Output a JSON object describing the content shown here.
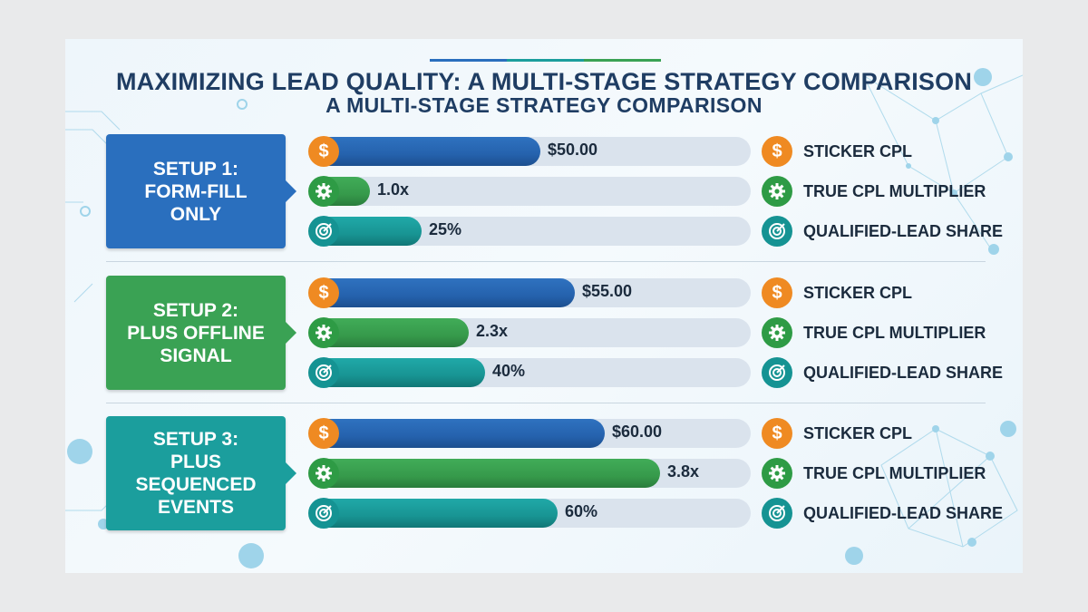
{
  "title": "MAXIMIZING LEAD QUALITY: A MULTI-STAGE STRATEGY COMPARISON",
  "subtitle": "A MULTI-STAGE STRATEGY COMPARISON",
  "colors": {
    "blue": "#2562ad",
    "green": "#369a4b",
    "teal": "#189493",
    "orange": "#ef8a22",
    "title": "#1f3d63",
    "track": "#dae3ed"
  },
  "metrics": [
    {
      "key": "sticker_cpl",
      "label": "STICKER CPL",
      "icon": "dollar-icon",
      "bar_color": "#2562ad",
      "icon_color": "#ef8a22"
    },
    {
      "key": "true_cpl_multiplier",
      "label": "TRUE CPL MULTIPLIER",
      "icon": "gear-icon",
      "bar_color": "#369a4b",
      "icon_color": "#2e9b45"
    },
    {
      "key": "qualified_lead_share",
      "label": "QUALIFIED-LEAD SHARE",
      "icon": "target-icon",
      "bar_color": "#189493",
      "icon_color": "#159393"
    }
  ],
  "chart_data": {
    "type": "bar",
    "orientation": "horizontal",
    "title": "MAXIMIZING LEAD QUALITY: A MULTI-STAGE STRATEGY COMPARISON",
    "subtitle": "A MULTI-STAGE STRATEGY COMPARISON",
    "legend_position": "right",
    "groups": [
      {
        "name": "SETUP 1:\nFORM-FILL\nONLY",
        "color": "#2a6fbe",
        "values": [
          {
            "metric": "STICKER CPL",
            "value": 50,
            "label": "$50.00",
            "fill": 0.52
          },
          {
            "metric": "TRUE CPL MULTIPLIER",
            "value": 1.0,
            "label": "1.0x",
            "fill": 0.12
          },
          {
            "metric": "QUALIFIED-LEAD SHARE",
            "value": 25,
            "label": "25%",
            "fill": 0.24
          }
        ]
      },
      {
        "name": "SETUP 2:\nPLUS OFFLINE\nSIGNAL",
        "color": "#3aa254",
        "values": [
          {
            "metric": "STICKER CPL",
            "value": 55,
            "label": "$55.00",
            "fill": 0.6
          },
          {
            "metric": "TRUE CPL MULTIPLIER",
            "value": 2.3,
            "label": "2.3x",
            "fill": 0.35
          },
          {
            "metric": "QUALIFIED-LEAD SHARE",
            "value": 40,
            "label": "40%",
            "fill": 0.39
          }
        ]
      },
      {
        "name": "SETUP 3:\nPLUS\nSEQUENCED\nEVENTS",
        "color": "#1b9e9d",
        "values": [
          {
            "metric": "STICKER CPL",
            "value": 60,
            "label": "$60.00",
            "fill": 0.67
          },
          {
            "metric": "TRUE CPL MULTIPLIER",
            "value": 3.8,
            "label": "3.8x",
            "fill": 0.8
          },
          {
            "metric": "QUALIFIED-LEAD SHARE",
            "value": 60,
            "label": "60%",
            "fill": 0.56
          }
        ]
      }
    ]
  }
}
